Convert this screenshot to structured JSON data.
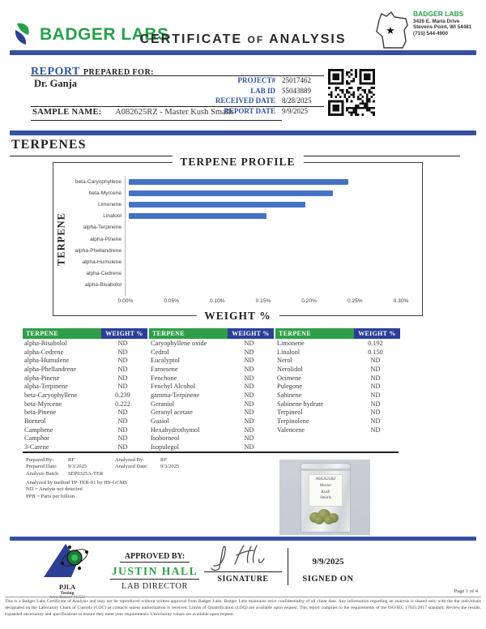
{
  "header": {
    "brand": "BADGER LABS",
    "title_parts": [
      "CERTIFICATE",
      "OF",
      "ANALYSIS"
    ],
    "lab_info": {
      "name": "BADGER LABS",
      "address1": "3426 E. Maria Drive",
      "address2": "Stevens Point, WI 54481",
      "phone": "(715) 544-4900"
    }
  },
  "report": {
    "section_label": "REPORT",
    "prepared_for_label": "PREPARED FOR:",
    "client": "Dr. Ganja",
    "fields": [
      {
        "label": "PROJECT#",
        "value": "25017462"
      },
      {
        "label": "LAB ID",
        "value": "55043889"
      },
      {
        "label": "RECEIVED DATE",
        "value": "8/28/2025"
      },
      {
        "label": "REPORT DATE",
        "value": "9/9/2025"
      }
    ],
    "sample_name_label": "SAMPLE NAME:",
    "sample_name": "A082625RZ - Master Kush Smalls"
  },
  "section": {
    "title": "TERPENES"
  },
  "chart_data": {
    "type": "bar",
    "orientation": "horizontal",
    "title": "TERPENE PROFILE",
    "xlabel": "WEIGHT %",
    "ylabel": "TERPENE",
    "categories": [
      "beta-Caryophyllene",
      "beta-Myrcene",
      "Limonene",
      "Linalool",
      "alpha-Terpinene",
      "alpha-Pinene",
      "alpha-Phellandrene",
      "alpha-Humulene",
      "alpha-Cedrene",
      "alpha-Bisabolol"
    ],
    "values": [
      0.239,
      0.222,
      0.192,
      0.15,
      0,
      0,
      0,
      0,
      0,
      0
    ],
    "xlim": [
      0,
      0.3
    ],
    "tick_labels": [
      "0.00%",
      "0.05%",
      "0.10%",
      "0.15%",
      "0.20%",
      "0.25%",
      "0.30%"
    ],
    "bar_color": "#4472c4",
    "legend": "none",
    "grid": "off"
  },
  "table": {
    "name_header": "TERPENE",
    "weight_header": "WEIGHT %",
    "columns": [
      {
        "rows": [
          [
            "alpha-Bisabolol",
            "ND"
          ],
          [
            "alpha-Cedrene",
            "ND"
          ],
          [
            "alpha-Humulene",
            "ND"
          ],
          [
            "alpha-Phellandrene",
            "ND"
          ],
          [
            "alpha-Pinene",
            "ND"
          ],
          [
            "alpha-Terpinene",
            "ND"
          ],
          [
            "beta-Caryophyllene",
            "0.239"
          ],
          [
            "beta-Myrcene",
            "0.222"
          ],
          [
            "beta-Pinene",
            "ND"
          ],
          [
            "Borneol",
            "ND"
          ],
          [
            "Camphene",
            "ND"
          ],
          [
            "Camphor",
            "ND"
          ],
          [
            "3-Carene",
            "ND"
          ]
        ]
      },
      {
        "rows": [
          [
            "Caryophyllene oxide",
            "ND"
          ],
          [
            "Cedrol",
            "ND"
          ],
          [
            "Eucalyptol",
            "ND"
          ],
          [
            "Farnesene",
            "ND"
          ],
          [
            "Fenchone",
            "ND"
          ],
          [
            "Fenchyl Alcohol",
            "ND"
          ],
          [
            "gamma-Terpinene",
            "ND"
          ],
          [
            "Geraniol",
            "ND"
          ],
          [
            "Geranyl acetate",
            "ND"
          ],
          [
            "Guaiol",
            "ND"
          ],
          [
            "Hexahydrothymol",
            "ND"
          ],
          [
            "Isoborneol",
            "ND"
          ],
          [
            "Isopulegol",
            "ND"
          ]
        ]
      },
      {
        "rows": [
          [
            "Limonene",
            "0.192"
          ],
          [
            "Linalool",
            "0.150"
          ],
          [
            "Nerol",
            "ND"
          ],
          [
            "Nerolidol",
            "ND"
          ],
          [
            "Ocimene",
            "ND"
          ],
          [
            "Pulegone",
            "ND"
          ],
          [
            "Sabinene",
            "ND"
          ],
          [
            "Sabinene hydrate",
            "ND"
          ],
          [
            "Terpineol",
            "ND"
          ],
          [
            "Terpinolene",
            "ND"
          ],
          [
            "Valencene",
            "ND"
          ],
          [
            "",
            ""
          ],
          [
            "",
            ""
          ]
        ]
      }
    ]
  },
  "notes": {
    "grid_rows": [
      [
        "Prepared By:",
        "RF",
        "Analyzed By:",
        "RF"
      ],
      [
        "Prepared Date:",
        "9/3/2025",
        "Analyzed Date:",
        "9/3/2025"
      ],
      [
        "Analysis Batch:",
        "SEP0325A-TER",
        "",
        ""
      ]
    ],
    "extra_lines": [
      "Analyzed by method TP-TER-01 by HS-GCMS",
      "ND = Analyte not detected",
      "PPB = Parts per billion"
    ]
  },
  "photo": {
    "label_lines": [
      "A082625RZ",
      "Master",
      "Kush",
      "Smalls"
    ]
  },
  "approval": {
    "approved_by_label": "APPROVED BY:",
    "approver": "JUSTIN HALL",
    "approver_title": "LAB DIRECTOR",
    "signature_label": "SIGNATURE",
    "signed_on_date": "9/9/2025",
    "signed_on_label": "SIGNED ON",
    "accreditation": {
      "org": "PJLA",
      "sub": "Testing",
      "number": "Accreditation# 115522"
    },
    "page": "Page 1 of 4"
  },
  "legal": "This is a Badger Labs Certificate of Analysis and may not be reproduced without written approval from Badger Labs. Badger Labs maintains strict confidentiality of all client data. Any information regarding an analysis is shared only with the the individuals designated on the Laboratory Chain of Custody (COC) as contacts unless authorization is received. Limits of Quantification (LOQ) are available upon request. This report complies to the requirements of the ISO/IEC 17025:2017 standard. Review the results, expanded uncertainty and specifications to ensure they meet your requirements. Uncertainty values are available upon request.",
  "colors": {
    "accent_navy": "#35509e",
    "brand_green": "#27a04a",
    "table_green": "#2f9e49",
    "table_blue": "#2b3f97",
    "bar_blue": "#4472c4",
    "label_blue": "#2b52a0"
  }
}
